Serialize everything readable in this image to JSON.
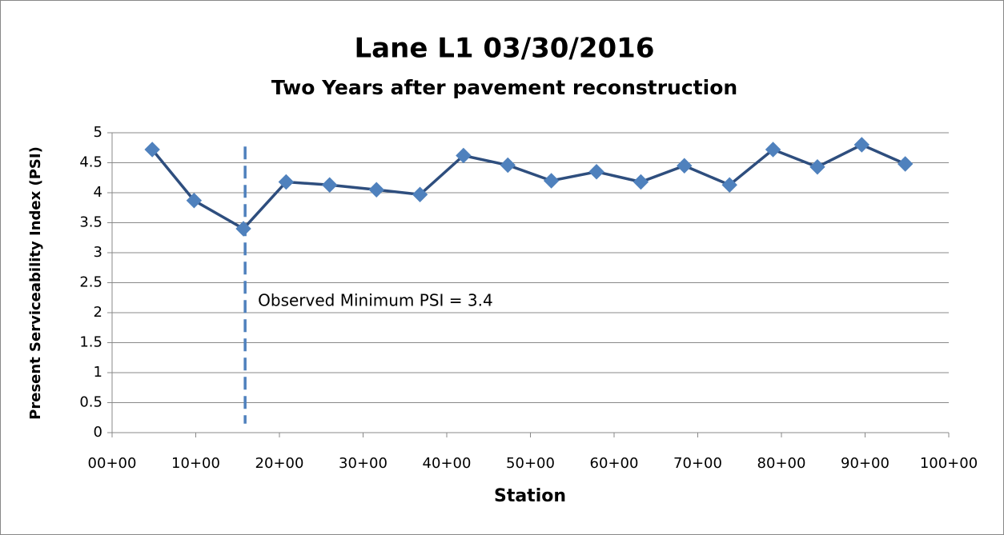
{
  "chart_data": {
    "type": "line",
    "title": "Lane L1 03/30/2016",
    "subtitle": "Two Years after pavement reconstruction",
    "x_label": "Station",
    "y_label": "Present Serviceability Index (PSI)",
    "x": [
      4.8,
      9.8,
      15.7,
      20.8,
      26.0,
      31.6,
      36.8,
      42.0,
      47.3,
      52.5,
      57.9,
      63.2,
      68.4,
      73.8,
      79.0,
      84.3,
      89.6,
      94.8
    ],
    "series": [
      {
        "name": "PSI",
        "color": "#2e4e7e",
        "marker_color": "#4f81bd",
        "values": [
          4.72,
          3.87,
          3.4,
          4.18,
          4.13,
          4.05,
          3.97,
          4.62,
          4.46,
          4.2,
          4.35,
          4.18,
          4.45,
          4.13,
          4.72,
          4.43,
          4.8,
          4.48
        ]
      }
    ],
    "reference_line": {
      "x": 15.9,
      "color": "#4f81bd",
      "label": "Observed Minimum PSI = 3.4"
    },
    "xlim": [
      0,
      100
    ],
    "xticks": [
      {
        "value": 0,
        "label": "00+00"
      },
      {
        "value": 10,
        "label": "10+00"
      },
      {
        "value": 20,
        "label": "20+00"
      },
      {
        "value": 30,
        "label": "30+00"
      },
      {
        "value": 40,
        "label": "40+00"
      },
      {
        "value": 50,
        "label": "50+00"
      },
      {
        "value": 60,
        "label": "60+00"
      },
      {
        "value": 70,
        "label": "70+00"
      },
      {
        "value": 80,
        "label": "80+00"
      },
      {
        "value": 90,
        "label": "90+00"
      },
      {
        "value": 100,
        "label": "100+00"
      }
    ],
    "ylim": [
      0,
      5
    ],
    "yticks": [
      0,
      0.5,
      1,
      1.5,
      2,
      2.5,
      3,
      3.5,
      4,
      4.5,
      5
    ],
    "grid": true
  }
}
